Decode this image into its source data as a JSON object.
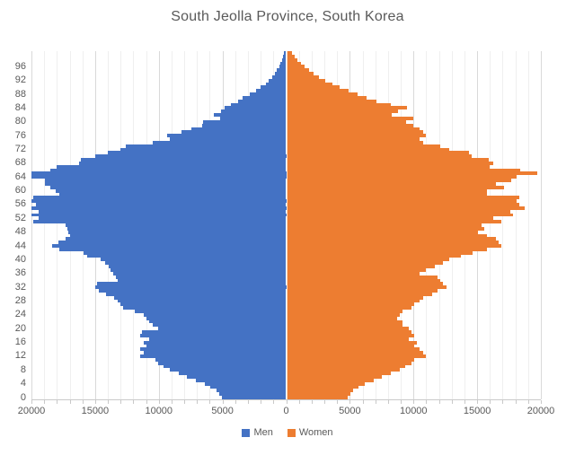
{
  "title": "South Jeolla Province, South Korea",
  "legend": {
    "men_label": "Men",
    "women_label": "Women"
  },
  "colors": {
    "men": "#4472c4",
    "women": "#ed7d31",
    "text": "#595959",
    "gridline_minor": "#efefef",
    "gridline_major": "#d9d9d9",
    "axis_line": "#c9c9c9",
    "background": "#ffffff"
  },
  "chart_data": {
    "type": "bar",
    "subtype": "population-pyramid",
    "title": "South Jeolla Province, South Korea",
    "xlabel": "",
    "ylabel": "",
    "x_axis": {
      "tick_labels": [
        "20000",
        "15000",
        "10000",
        "5000",
        "0",
        "5000",
        "10000",
        "15000",
        "20000"
      ],
      "tick_values": [
        -20000,
        -15000,
        -10000,
        -5000,
        0,
        5000,
        10000,
        15000,
        20000
      ],
      "max_each_side": 20000,
      "minor_gridline_step": 1000,
      "major_gridline_step": 5000
    },
    "y_axis": {
      "age_min": 0,
      "age_max": 100,
      "label_step": 4,
      "tick_labels": [
        "0",
        "4",
        "8",
        "12",
        "16",
        "20",
        "24",
        "28",
        "32",
        "36",
        "40",
        "44",
        "48",
        "52",
        "56",
        "60",
        "64",
        "68",
        "72",
        "76",
        "80",
        "84",
        "88",
        "92",
        "96"
      ]
    },
    "grid": true,
    "legend_position": "bottom",
    "series": [
      {
        "name": "Men",
        "color": "#4472c4",
        "side": "left",
        "values": [
          5030,
          5260,
          5490,
          5940,
          6400,
          7090,
          7770,
          8460,
          9140,
          9600,
          10060,
          10290,
          11430,
          11200,
          11430,
          10970,
          11200,
          10740,
          11430,
          11340,
          10060,
          10510,
          10740,
          10970,
          11200,
          11890,
          12800,
          13030,
          13260,
          13490,
          14170,
          14720,
          15000,
          14860,
          13200,
          13400,
          13550,
          13800,
          13900,
          14250,
          14600,
          15650,
          15900,
          17800,
          18400,
          17900,
          17300,
          17000,
          17100,
          17150,
          17350,
          19890,
          19430,
          20200,
          19430,
          20400,
          19660,
          20030,
          19890,
          17830,
          18060,
          18510,
          18970,
          18970,
          20430,
          20200,
          18500,
          18000,
          16230,
          16100,
          15000,
          14000,
          13030,
          12570,
          10510,
          9150,
          9350,
          8250,
          7470,
          6600,
          6530,
          5200,
          5670,
          5100,
          4840,
          4370,
          3800,
          3430,
          2840,
          2370,
          1980,
          1620,
          1350,
          1100,
          900,
          720,
          560,
          430,
          320,
          230,
          150
        ]
      },
      {
        "name": "Women",
        "color": "#ed7d31",
        "side": "right",
        "values": [
          4800,
          5030,
          5260,
          5710,
          6170,
          6860,
          7540,
          8230,
          8910,
          9370,
          9830,
          10060,
          10970,
          10740,
          10510,
          10060,
          10290,
          9600,
          10060,
          9830,
          9600,
          9140,
          9140,
          8690,
          8910,
          9140,
          9830,
          10060,
          10510,
          10740,
          11430,
          11890,
          12570,
          12340,
          12110,
          11890,
          10510,
          10970,
          11660,
          12340,
          12800,
          13710,
          14630,
          15770,
          16910,
          16690,
          16460,
          15770,
          15090,
          15540,
          15310,
          16910,
          16230,
          17830,
          17600,
          18740,
          18290,
          18060,
          18290,
          15770,
          15800,
          17140,
          16460,
          17700,
          18060,
          19750,
          18350,
          16000,
          16240,
          15880,
          14580,
          14350,
          12800,
          12110,
          10740,
          10500,
          10950,
          10750,
          10450,
          9950,
          9400,
          9950,
          8300,
          8800,
          9500,
          8250,
          7100,
          6300,
          5640,
          4930,
          4200,
          3600,
          3050,
          2600,
          2150,
          1800,
          1450,
          1150,
          900,
          650,
          450
        ]
      }
    ]
  }
}
